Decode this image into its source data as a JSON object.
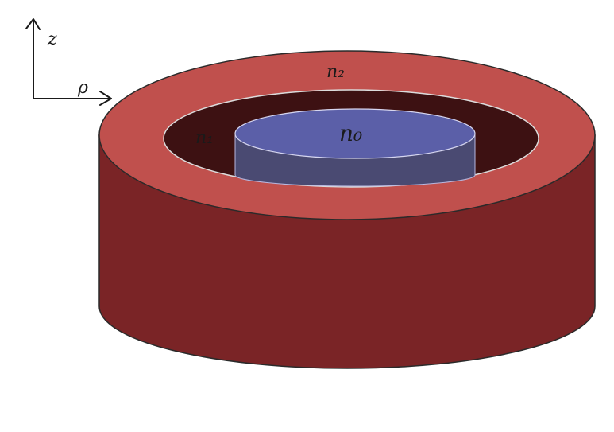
{
  "axes": {
    "vertical_label": "z",
    "horizontal_label": "ρ"
  },
  "regions": {
    "outer": {
      "label": "n₂",
      "top_color": "#c0504d",
      "side_color": "#7a2426"
    },
    "middle": {
      "label": "n₁",
      "color": "#3d1112"
    },
    "core": {
      "label": "n₀",
      "top_color": "#5b5fa8",
      "side_color": "#4a4a72"
    }
  }
}
